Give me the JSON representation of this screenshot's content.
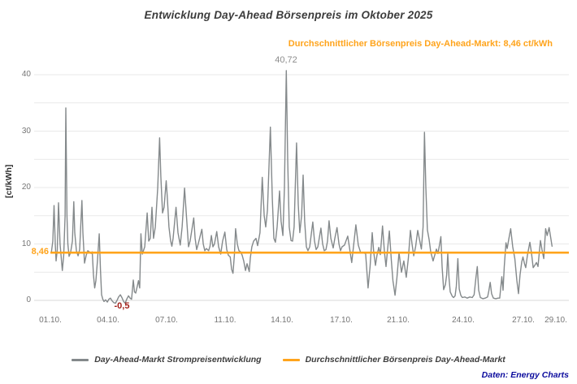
{
  "title": "Entwicklung Day-Ahead Börsenpreis im Oktober 2025",
  "subtitle": "Durchschnittlicher Börsenpreis Day-Ahead-Markt: 8,46 ct/kWh",
  "source": "Daten: Energy Charts",
  "colors": {
    "series_gray": "#84898b",
    "average_orange": "#ffa41c",
    "grid": "#e9e9e9",
    "axis": "#d8d8d8",
    "tick_text": "#757575",
    "min_red": "#a2201a",
    "peak_gray": "#8c8c8c",
    "source_blue": "#0b0b9d"
  },
  "legend": [
    {
      "label": "Day-Ahead-Markt Strompreisentwicklung",
      "color": "#84898b"
    },
    {
      "label": "Durchschnittlicher Börsenpreis Day-Ahead-Markt",
      "color": "#ffa41c"
    }
  ],
  "chart_data": {
    "type": "line",
    "title": "Entwicklung Day-Ahead Börsenpreis im Oktober 2025",
    "xlabel": "",
    "ylabel": "[ct/kWh]",
    "ylim": [
      -1,
      42
    ],
    "y_ticks": [
      0,
      10,
      20,
      30,
      40
    ],
    "y_minor_step": 5,
    "grid": "horizontal only",
    "legend_position": "bottom center",
    "x_unit": "day of October 2025 (fractional day, 1.0 = 01.10. 00:00)",
    "x_ticks": [
      {
        "label": "01.10.",
        "px": 62
      },
      {
        "label": "04.10.",
        "px": 133
      },
      {
        "label": "07.10.",
        "px": 205
      },
      {
        "label": "11.10.",
        "px": 277
      },
      {
        "label": "14.10.",
        "px": 347
      },
      {
        "label": "17.10.",
        "px": 420
      },
      {
        "label": "21.10.",
        "px": 490
      },
      {
        "label": "24.10.",
        "px": 570
      },
      {
        "label": "27.10.",
        "px": 644
      },
      {
        "label": "29.10.",
        "px": 684
      }
    ],
    "avg_line": {
      "value": 8.46,
      "label": "8,46"
    },
    "annotations": [
      {
        "text": "40,72",
        "value": 40.72,
        "day": 14.63
      },
      {
        "text": "-0,5",
        "value": -0.5,
        "day": 5.1
      }
    ],
    "series": [
      {
        "name": "Day-Ahead-Markt Strompreisentwicklung",
        "max": 40.72,
        "min": -0.5,
        "points": [
          [
            1.06,
            8.6
          ],
          [
            1.14,
            10.5
          ],
          [
            1.21,
            16.8
          ],
          [
            1.28,
            10.0
          ],
          [
            1.33,
            7.0
          ],
          [
            1.4,
            9.0
          ],
          [
            1.47,
            17.3
          ],
          [
            1.56,
            10.0
          ],
          [
            1.69,
            5.3
          ],
          [
            1.77,
            8.0
          ],
          [
            1.85,
            15.0
          ],
          [
            1.89,
            34.1
          ],
          [
            1.96,
            15.0
          ],
          [
            2.01,
            10.0
          ],
          [
            2.08,
            7.8
          ],
          [
            2.17,
            8.5
          ],
          [
            2.27,
            10.5
          ],
          [
            2.35,
            17.5
          ],
          [
            2.41,
            12.0
          ],
          [
            2.5,
            8.8
          ],
          [
            2.6,
            7.9
          ],
          [
            2.69,
            9.0
          ],
          [
            2.82,
            17.7
          ],
          [
            2.88,
            12.0
          ],
          [
            2.97,
            6.6
          ],
          [
            3.07,
            8.0
          ],
          [
            3.16,
            8.8
          ],
          [
            3.25,
            8.6
          ],
          [
            3.35,
            8.3
          ],
          [
            3.42,
            8.6
          ],
          [
            3.49,
            4.5
          ],
          [
            3.56,
            2.2
          ],
          [
            3.63,
            3.5
          ],
          [
            3.72,
            7.0
          ],
          [
            3.82,
            11.8
          ],
          [
            3.89,
            5.5
          ],
          [
            3.96,
            1.0
          ],
          [
            4.03,
            0.2
          ],
          [
            4.1,
            -0.2
          ],
          [
            4.19,
            0.1
          ],
          [
            4.29,
            -0.3
          ],
          [
            4.38,
            0.2
          ],
          [
            4.47,
            0.4
          ],
          [
            4.57,
            -0.1
          ],
          [
            4.66,
            -0.4
          ],
          [
            4.76,
            -0.5
          ],
          [
            4.85,
            0.0
          ],
          [
            4.94,
            0.6
          ],
          [
            5.04,
            1.0
          ],
          [
            5.13,
            0.5
          ],
          [
            5.23,
            -0.2
          ],
          [
            5.32,
            -0.5
          ],
          [
            5.41,
            0.2
          ],
          [
            5.51,
            0.8
          ],
          [
            5.6,
            0.4
          ],
          [
            5.69,
            0.2
          ],
          [
            5.79,
            3.6
          ],
          [
            5.86,
            1.5
          ],
          [
            5.93,
            1.3
          ],
          [
            6.02,
            2.5
          ],
          [
            6.09,
            3.5
          ],
          [
            6.16,
            2.2
          ],
          [
            6.23,
            11.8
          ],
          [
            6.31,
            8.2
          ],
          [
            6.45,
            9.5
          ],
          [
            6.59,
            15.5
          ],
          [
            6.68,
            10.5
          ],
          [
            6.77,
            11.0
          ],
          [
            6.87,
            16.5
          ],
          [
            6.96,
            11.0
          ],
          [
            7.06,
            13.0
          ],
          [
            7.2,
            20.0
          ],
          [
            7.31,
            28.8
          ],
          [
            7.38,
            22.0
          ],
          [
            7.48,
            15.5
          ],
          [
            7.57,
            16.5
          ],
          [
            7.69,
            21.2
          ],
          [
            7.76,
            18.0
          ],
          [
            7.85,
            13.0
          ],
          [
            7.95,
            10.5
          ],
          [
            8.02,
            9.6
          ],
          [
            8.09,
            11.0
          ],
          [
            8.26,
            16.5
          ],
          [
            8.37,
            12.0
          ],
          [
            8.5,
            9.8
          ],
          [
            8.61,
            13.0
          ],
          [
            8.75,
            19.9
          ],
          [
            8.86,
            15.0
          ],
          [
            8.98,
            9.5
          ],
          [
            9.07,
            10.5
          ],
          [
            9.28,
            14.6
          ],
          [
            9.36,
            11.0
          ],
          [
            9.45,
            9.0
          ],
          [
            9.54,
            10.0
          ],
          [
            9.75,
            12.6
          ],
          [
            9.83,
            10.0
          ],
          [
            9.92,
            8.8
          ],
          [
            10.01,
            9.2
          ],
          [
            10.14,
            8.8
          ],
          [
            10.22,
            9.6
          ],
          [
            10.3,
            11.5
          ],
          [
            10.39,
            9.5
          ],
          [
            10.48,
            10.0
          ],
          [
            10.61,
            12.2
          ],
          [
            10.72,
            9.5
          ],
          [
            10.84,
            8.2
          ],
          [
            10.95,
            10.5
          ],
          [
            11.08,
            12.1
          ],
          [
            11.19,
            9.0
          ],
          [
            11.28,
            8.0
          ],
          [
            11.39,
            7.7
          ],
          [
            11.47,
            5.5
          ],
          [
            11.55,
            4.8
          ],
          [
            11.63,
            8.0
          ],
          [
            11.7,
            12.7
          ],
          [
            11.8,
            10.0
          ],
          [
            11.89,
            8.8
          ],
          [
            11.99,
            8.6
          ],
          [
            12.08,
            8.0
          ],
          [
            12.17,
            7.0
          ],
          [
            12.27,
            5.3
          ],
          [
            12.36,
            6.5
          ],
          [
            12.49,
            5.1
          ],
          [
            12.55,
            7.5
          ],
          [
            12.64,
            9.5
          ],
          [
            12.74,
            10.5
          ],
          [
            12.88,
            11.0
          ],
          [
            12.97,
            9.7
          ],
          [
            13.11,
            12.0
          ],
          [
            13.24,
            21.8
          ],
          [
            13.35,
            15.0
          ],
          [
            13.44,
            13.0
          ],
          [
            13.54,
            16.0
          ],
          [
            13.71,
            30.7
          ],
          [
            13.82,
            18.0
          ],
          [
            13.91,
            11.0
          ],
          [
            14.0,
            10.3
          ],
          [
            14.1,
            13.0
          ],
          [
            14.24,
            19.4
          ],
          [
            14.33,
            14.0
          ],
          [
            14.43,
            11.5
          ],
          [
            14.52,
            20.0
          ],
          [
            14.63,
            40.72
          ],
          [
            14.71,
            25.0
          ],
          [
            14.8,
            13.0
          ],
          [
            14.9,
            10.6
          ],
          [
            14.99,
            10.5
          ],
          [
            15.08,
            13.0
          ],
          [
            15.22,
            27.9
          ],
          [
            15.32,
            17.0
          ],
          [
            15.41,
            12.0
          ],
          [
            15.51,
            15.0
          ],
          [
            15.6,
            22.2
          ],
          [
            15.69,
            14.0
          ],
          [
            15.79,
            9.5
          ],
          [
            15.88,
            8.8
          ],
          [
            15.98,
            9.5
          ],
          [
            16.16,
            13.9
          ],
          [
            16.26,
            10.5
          ],
          [
            16.35,
            9.0
          ],
          [
            16.45,
            9.5
          ],
          [
            16.63,
            12.8
          ],
          [
            16.73,
            10.0
          ],
          [
            16.82,
            8.8
          ],
          [
            16.92,
            9.0
          ],
          [
            17.01,
            10.5
          ],
          [
            17.1,
            14.1
          ],
          [
            17.2,
            11.0
          ],
          [
            17.34,
            9.3
          ],
          [
            17.43,
            11.0
          ],
          [
            17.56,
            12.9
          ],
          [
            17.67,
            10.0
          ],
          [
            17.76,
            8.8
          ],
          [
            17.85,
            9.5
          ],
          [
            17.99,
            9.8
          ],
          [
            18.18,
            11.4
          ],
          [
            18.41,
            6.7
          ],
          [
            18.65,
            13.4
          ],
          [
            18.79,
            9.8
          ],
          [
            18.93,
            8.4
          ],
          [
            19.07,
            8.4
          ],
          [
            19.21,
            8.3
          ],
          [
            19.35,
            2.2
          ],
          [
            19.47,
            6.0
          ],
          [
            19.59,
            12.0
          ],
          [
            19.68,
            8.5
          ],
          [
            19.78,
            6.2
          ],
          [
            19.87,
            8.0
          ],
          [
            19.97,
            9.4
          ],
          [
            20.06,
            8.1
          ],
          [
            20.19,
            13.2
          ],
          [
            20.3,
            8.5
          ],
          [
            20.39,
            6.0
          ],
          [
            20.48,
            9.0
          ],
          [
            20.58,
            12.3
          ],
          [
            20.7,
            7.0
          ],
          [
            20.79,
            3.5
          ],
          [
            20.91,
            0.9
          ],
          [
            21.02,
            4.0
          ],
          [
            21.14,
            8.5
          ],
          [
            21.28,
            5.0
          ],
          [
            21.42,
            7.0
          ],
          [
            21.56,
            4.1
          ],
          [
            21.68,
            7.5
          ],
          [
            21.8,
            12.4
          ],
          [
            21.89,
            10.0
          ],
          [
            21.99,
            7.9
          ],
          [
            22.1,
            9.5
          ],
          [
            22.22,
            12.4
          ],
          [
            22.31,
            11.0
          ],
          [
            22.43,
            9.1
          ],
          [
            22.53,
            13.0
          ],
          [
            22.61,
            29.8
          ],
          [
            22.69,
            20.0
          ],
          [
            22.78,
            12.5
          ],
          [
            22.88,
            10.8
          ],
          [
            22.97,
            8.6
          ],
          [
            23.11,
            7.0
          ],
          [
            23.21,
            8.1
          ],
          [
            23.3,
            9.1
          ],
          [
            23.39,
            8.3
          ],
          [
            23.49,
            10.0
          ],
          [
            23.56,
            11.3
          ],
          [
            23.63,
            6.0
          ],
          [
            23.72,
            1.9
          ],
          [
            23.82,
            2.8
          ],
          [
            23.89,
            4.5
          ],
          [
            23.96,
            8.3
          ],
          [
            24.03,
            4.0
          ],
          [
            24.1,
            1.5
          ],
          [
            24.22,
            0.7
          ],
          [
            24.29,
            0.5
          ],
          [
            24.38,
            0.8
          ],
          [
            24.45,
            2.5
          ],
          [
            24.54,
            7.4
          ],
          [
            24.62,
            2.0
          ],
          [
            24.71,
            0.9
          ],
          [
            24.8,
            0.5
          ],
          [
            24.94,
            0.6
          ],
          [
            25.08,
            0.4
          ],
          [
            25.23,
            0.6
          ],
          [
            25.37,
            0.5
          ],
          [
            25.48,
            1.0
          ],
          [
            25.58,
            4.0
          ],
          [
            25.66,
            6.0
          ],
          [
            25.74,
            1.8
          ],
          [
            25.84,
            0.5
          ],
          [
            25.98,
            0.3
          ],
          [
            26.12,
            0.4
          ],
          [
            26.26,
            0.6
          ],
          [
            26.33,
            1.7
          ],
          [
            26.41,
            3.2
          ],
          [
            26.49,
            1.2
          ],
          [
            26.59,
            0.4
          ],
          [
            26.73,
            0.3
          ],
          [
            26.87,
            0.4
          ],
          [
            26.96,
            0.4
          ],
          [
            27.08,
            4.2
          ],
          [
            27.15,
            1.8
          ],
          [
            27.22,
            6.0
          ],
          [
            27.32,
            10.2
          ],
          [
            27.39,
            9.2
          ],
          [
            27.48,
            10.8
          ],
          [
            27.59,
            12.7
          ],
          [
            27.71,
            9.5
          ],
          [
            27.83,
            7.4
          ],
          [
            27.95,
            3.5
          ],
          [
            28.04,
            1.2
          ],
          [
            28.13,
            4.5
          ],
          [
            28.23,
            6.8
          ],
          [
            28.3,
            7.7
          ],
          [
            28.39,
            6.5
          ],
          [
            28.46,
            5.8
          ],
          [
            28.56,
            8.0
          ],
          [
            28.7,
            10.3
          ],
          [
            28.79,
            8.5
          ],
          [
            28.89,
            5.8
          ],
          [
            28.98,
            6.2
          ],
          [
            29.08,
            6.7
          ],
          [
            29.17,
            6.0
          ],
          [
            29.31,
            10.6
          ],
          [
            29.4,
            9.0
          ],
          [
            29.5,
            7.4
          ],
          [
            29.61,
            12.7
          ],
          [
            29.7,
            11.5
          ],
          [
            29.81,
            12.9
          ],
          [
            29.91,
            11.0
          ],
          [
            29.98,
            9.6
          ]
        ]
      }
    ]
  }
}
